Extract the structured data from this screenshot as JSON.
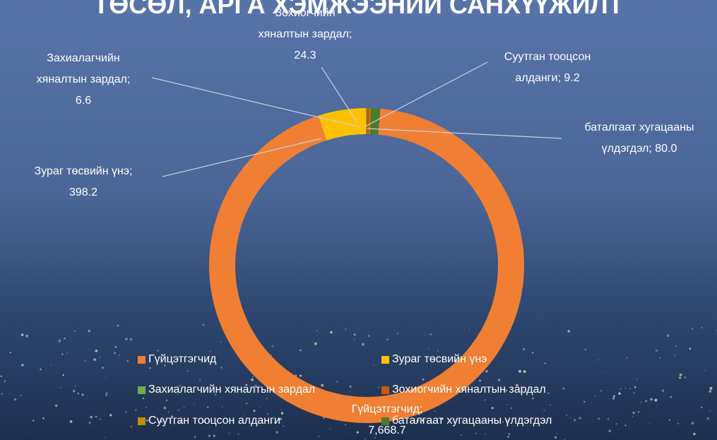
{
  "chart_data": {
    "type": "donut",
    "title": "ТӨСӨЛ, АРГА ХЭМЖЭЭНИЙ САНХҮҮЖИЛТ",
    "categories": [
      "Гүйцэтгэгчид",
      "Зураг төсвийн үнэ",
      "Захиалагчийн хяналтын зардал",
      "Зохиогчийн хяналтын зардал",
      "Суутган тооцсон алданги",
      "баталгаат хугацааны үлдэгдэл"
    ],
    "values": [
      7668.7,
      398.2,
      6.6,
      24.3,
      9.2,
      80.0
    ],
    "value_labels": [
      "7,668.7",
      "398.2",
      "6.6",
      "24.3",
      "9.2",
      "80.0"
    ],
    "label_separator": ";",
    "colors": [
      "#f07f33",
      "#ffc000",
      "#70ad47",
      "#c55a11",
      "#bf8f00",
      "#4e7a2c"
    ],
    "legend": "bottom"
  }
}
